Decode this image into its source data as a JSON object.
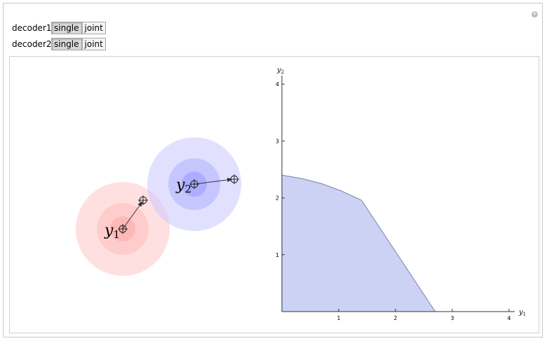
{
  "controls": [
    {
      "label": "decoder1",
      "options": [
        "single",
        "joint"
      ]
    },
    {
      "label": "decoder2",
      "options": [
        "single",
        "joint"
      ]
    }
  ],
  "diagram": {
    "points": [
      {
        "symbol": "y",
        "sub": "1"
      },
      {
        "symbol": "y",
        "sub": "2"
      }
    ]
  },
  "chart_data": {
    "type": "area",
    "x_label": {
      "symbol": "y",
      "sub": "1"
    },
    "y_label": {
      "symbol": "y",
      "sub": "2"
    },
    "x": [
      0,
      0.35,
      0.7,
      1.05,
      1.4,
      2.7
    ],
    "values": [
      2.4,
      2.34,
      2.25,
      2.12,
      1.96,
      0
    ],
    "color": "#ccd2f4",
    "xlim": [
      0,
      4.1
    ],
    "ylim": [
      0,
      4.15
    ],
    "xticks": [
      1,
      2,
      3,
      4
    ],
    "yticks": [
      1,
      2,
      3,
      4
    ]
  }
}
